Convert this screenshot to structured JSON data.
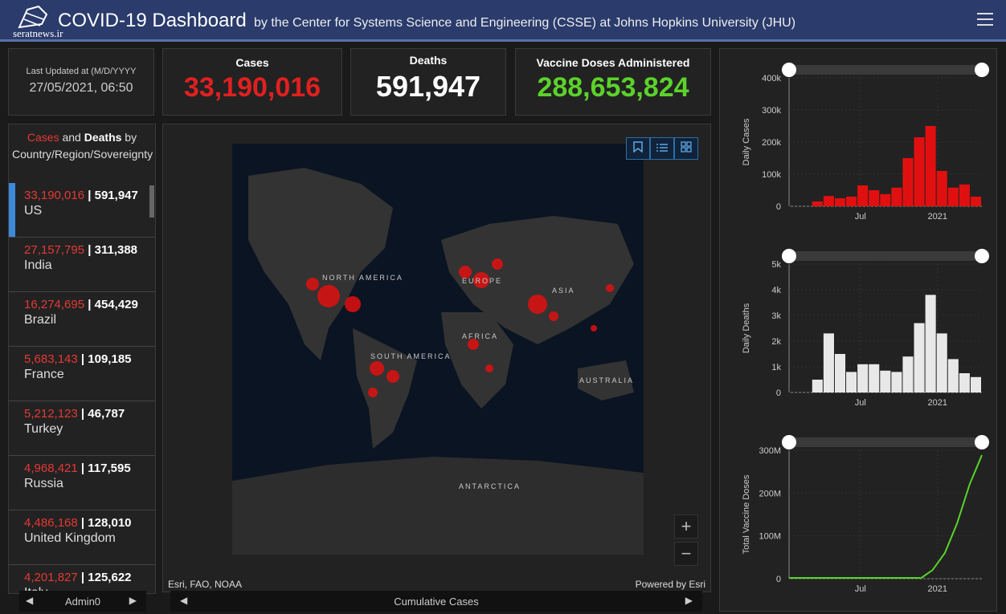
{
  "header": {
    "logo_text": "seratnews.ir",
    "title": "COVID-19 Dashboard",
    "subtitle": "by the Center for Systems Science and Engineering (CSSE) at Johns Hopkins University (JHU)"
  },
  "updated": {
    "label": "Last Updated at (M/D/YYYY",
    "value": "27/05/2021, 06:50"
  },
  "stats": {
    "cases": {
      "label": "Cases",
      "value": "33,190,016",
      "color": "#e02020"
    },
    "deaths": {
      "label": "Deaths",
      "value": "591,947",
      "color": "#ffffff"
    },
    "vaccine": {
      "label": "Vaccine Doses Administered",
      "value": "288,653,824",
      "color": "#5bd22b"
    }
  },
  "list": {
    "header_cases": "Cases",
    "header_and": " and ",
    "header_deaths": "Deaths",
    "header_rest": " by Country/Region/Sovereignty",
    "rows": [
      {
        "cases": "33,190,016",
        "deaths": "591,947",
        "name": "US"
      },
      {
        "cases": "27,157,795",
        "deaths": "311,388",
        "name": "India"
      },
      {
        "cases": "16,274,695",
        "deaths": "454,429",
        "name": "Brazil"
      },
      {
        "cases": "5,683,143",
        "deaths": "109,185",
        "name": "France"
      },
      {
        "cases": "5,212,123",
        "deaths": "46,787",
        "name": "Turkey"
      },
      {
        "cases": "4,968,421",
        "deaths": "117,595",
        "name": "Russia"
      },
      {
        "cases": "4,486,168",
        "deaths": "128,010",
        "name": "United Kingdom"
      },
      {
        "cases": "4,201,827",
        "deaths": "125,622",
        "name": "Italy"
      }
    ],
    "footer": "Admin0"
  },
  "map": {
    "labels": {
      "north_america": "NORTH AMERICA",
      "europe": "EUROPE",
      "asia": "ASIA",
      "africa": "AFRICA",
      "south_america": "SOUTH AMERICA",
      "australia": "AUSTRALIA",
      "antarctica": "ANTARCTICA"
    },
    "attribution_left": "Esri, FAO, NOAA",
    "attribution_right": "Powered by Esri",
    "footer": "Cumulative Cases",
    "zoom_in": "+",
    "zoom_out": "−"
  },
  "chart_data": [
    {
      "type": "bar",
      "ylabel": "Daily Cases",
      "ylim": [
        0,
        400000
      ],
      "yticks": [
        "0",
        "100k",
        "200k",
        "300k",
        "400k"
      ],
      "xticks": [
        "Jul",
        "2021"
      ],
      "color": "#e01010",
      "x": [
        "2020-03",
        "2020-04",
        "2020-05",
        "2020-06",
        "2020-07",
        "2020-08",
        "2020-09",
        "2020-10",
        "2020-11",
        "2020-12",
        "2021-01",
        "2021-02",
        "2021-03",
        "2021-04",
        "2021-05"
      ],
      "values": [
        15000,
        32000,
        25000,
        30000,
        65000,
        50000,
        38000,
        58000,
        150000,
        215000,
        250000,
        110000,
        58000,
        68000,
        30000
      ]
    },
    {
      "type": "bar",
      "ylabel": "Daily Deaths",
      "ylim": [
        0,
        5000
      ],
      "yticks": [
        "0",
        "1k",
        "2k",
        "3k",
        "4k",
        "5k"
      ],
      "xticks": [
        "Jul",
        "2021"
      ],
      "color": "#e8e8e8",
      "x": [
        "2020-03",
        "2020-04",
        "2020-05",
        "2020-06",
        "2020-07",
        "2020-08",
        "2020-09",
        "2020-10",
        "2020-11",
        "2020-12",
        "2021-01",
        "2021-02",
        "2021-03",
        "2021-04",
        "2021-05"
      ],
      "values": [
        500,
        2300,
        1500,
        800,
        1100,
        1100,
        850,
        800,
        1400,
        2700,
        3800,
        2300,
        1300,
        750,
        600
      ]
    },
    {
      "type": "line",
      "ylabel": "Total Vaccine Doses",
      "ylim": [
        0,
        300000000
      ],
      "yticks": [
        "0",
        "100M",
        "200M",
        "300M"
      ],
      "xticks": [
        "Jul",
        "2021"
      ],
      "color": "#5bd22b",
      "x": [
        "2020-12",
        "2021-01",
        "2021-02",
        "2021-03",
        "2021-04",
        "2021-05"
      ],
      "values": [
        0,
        20000000,
        60000000,
        130000000,
        220000000,
        288653824
      ]
    }
  ]
}
